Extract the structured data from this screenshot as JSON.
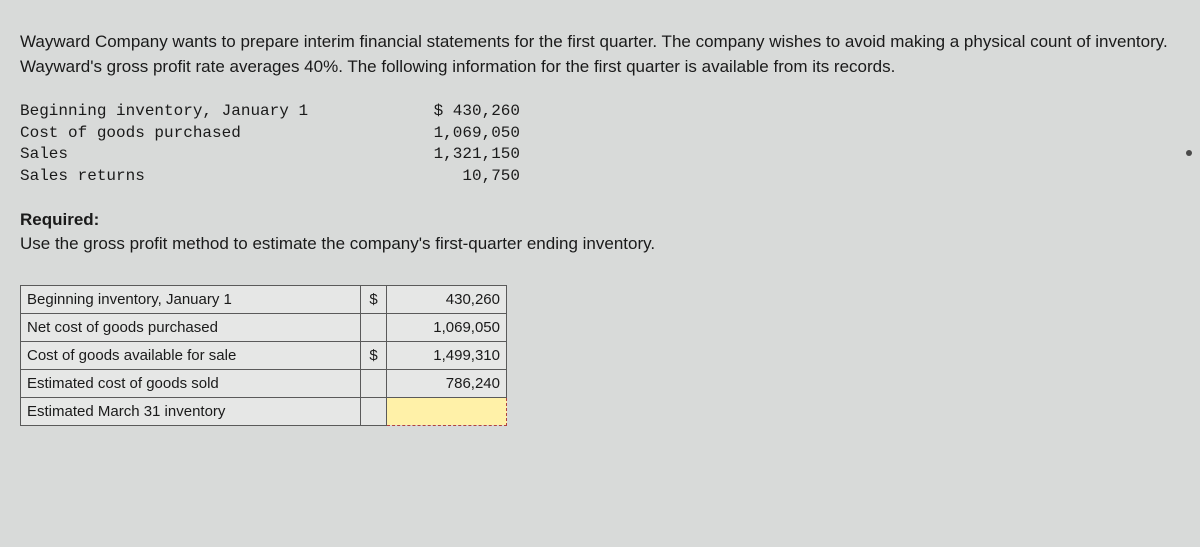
{
  "problem": {
    "text": "Wayward Company wants to prepare interim financial statements for the first quarter. The company wishes to avoid making a physical count of inventory. Wayward's gross profit rate averages 40%. The following information for the first quarter is available from its records."
  },
  "given": {
    "rows": [
      {
        "label": "Beginning inventory, January 1",
        "value": "$ 430,260"
      },
      {
        "label": "Cost of goods purchased",
        "value": "1,069,050"
      },
      {
        "label": "Sales",
        "value": "1,321,150"
      },
      {
        "label": "Sales returns",
        "value": "10,750"
      }
    ]
  },
  "required": {
    "heading": "Required:",
    "text": "Use the gross profit method to estimate the company's first-quarter ending inventory."
  },
  "answer": {
    "rows": [
      {
        "label": "Beginning inventory, January 1",
        "sym": "$",
        "value": "430,260",
        "highlight": false
      },
      {
        "label": "Net cost of goods purchased",
        "sym": "",
        "value": "1,069,050",
        "highlight": false
      },
      {
        "label": "Cost of goods available for sale",
        "sym": "$",
        "value": "1,499,310",
        "highlight": false
      },
      {
        "label": "Estimated cost of goods sold",
        "sym": "",
        "value": "786,240",
        "highlight": false
      },
      {
        "label": "Estimated March 31 inventory",
        "sym": "",
        "value": "",
        "highlight": true
      }
    ]
  },
  "colors": {
    "page_bg": "#d8dad9",
    "cell_bg": "#e6e7e6",
    "highlight_bg": "#fff1a8",
    "highlight_border": "#b04040",
    "border": "#5a5a5a",
    "text": "#1a1a1a"
  }
}
